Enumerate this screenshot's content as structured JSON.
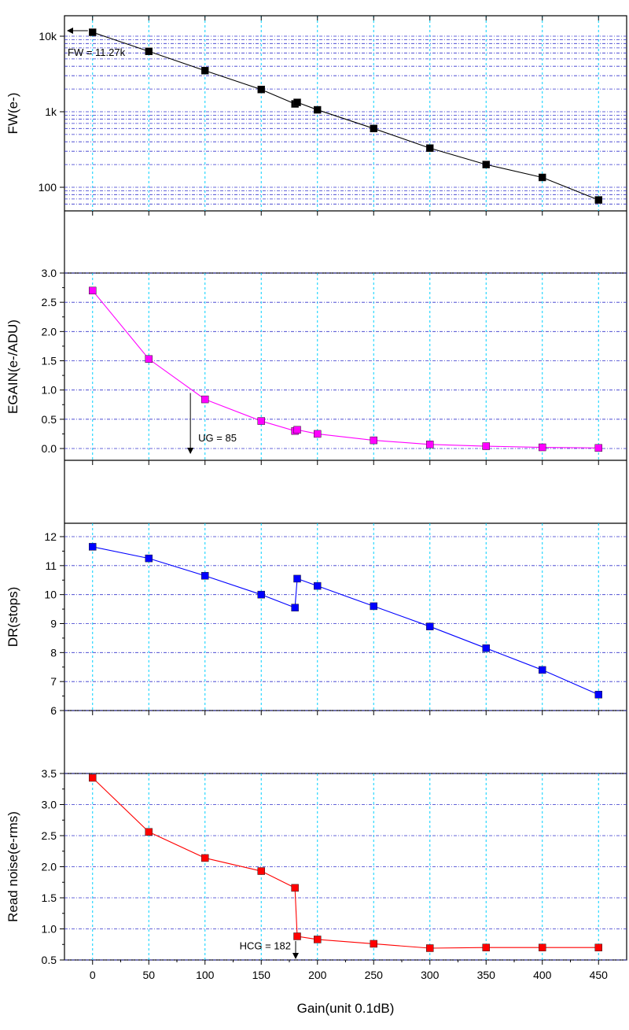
{
  "chart_data": {
    "type": "line",
    "xlabel": "Gain(unit 0.1dB)",
    "xlim": [
      -25,
      475
    ],
    "x_ticks": [
      0,
      50,
      100,
      150,
      200,
      250,
      300,
      350,
      400,
      450
    ],
    "x_tick_labels": [
      "0",
      "50",
      "100",
      "150",
      "200",
      "250",
      "300",
      "350",
      "400",
      "450"
    ],
    "grid": true,
    "panels": [
      {
        "id": "fw",
        "ylabel": "FW(e-)",
        "scale": "log",
        "ylim": [
          55,
          13500
        ],
        "y_ticks": [
          100,
          1000,
          10000
        ],
        "y_tick_labels": [
          "100",
          "1k",
          "10k"
        ],
        "color": "#000000",
        "x": [
          0,
          50,
          100,
          150,
          180,
          182,
          200,
          250,
          300,
          350,
          400,
          450
        ],
        "y": [
          11270,
          6300,
          3500,
          1970,
          1270,
          1330,
          1060,
          600,
          330,
          200,
          135,
          68
        ],
        "annotation": {
          "text": "FW = 11.27k",
          "x": 0,
          "y": 11270
        }
      },
      {
        "id": "egain",
        "ylabel": "EGAIN(e-/ADU)",
        "scale": "linear",
        "ylim": [
          -0.1,
          3.0
        ],
        "y_ticks": [
          0.0,
          0.5,
          1.0,
          1.5,
          2.0,
          2.5,
          3.0
        ],
        "y_tick_labels": [
          "0.0",
          "0.5",
          "1.0",
          "1.5",
          "2.0",
          "2.5",
          "3.0"
        ],
        "color": "#ff00ff",
        "x": [
          0,
          50,
          100,
          150,
          180,
          182,
          200,
          250,
          300,
          350,
          400,
          450
        ],
        "y": [
          2.7,
          1.53,
          0.84,
          0.47,
          0.3,
          0.32,
          0.25,
          0.14,
          0.07,
          0.04,
          0.02,
          0.01
        ],
        "annotation": {
          "text": "UG = 85",
          "x": 87,
          "y": 0
        }
      },
      {
        "id": "dr",
        "ylabel": "DR(stops)",
        "scale": "linear",
        "ylim": [
          6,
          12.4
        ],
        "y_ticks": [
          6,
          7,
          8,
          9,
          10,
          11,
          12
        ],
        "y_tick_labels": [
          "6",
          "7",
          "8",
          "9",
          "10",
          "11",
          "12"
        ],
        "color": "#0000ff",
        "x": [
          0,
          50,
          100,
          150,
          180,
          182,
          200,
          250,
          300,
          350,
          400,
          450
        ],
        "y": [
          11.65,
          11.25,
          10.65,
          10.0,
          9.55,
          10.55,
          10.3,
          9.6,
          8.9,
          8.15,
          7.4,
          6.55
        ]
      },
      {
        "id": "rn",
        "ylabel": "Read noise(e-rms)",
        "scale": "linear",
        "ylim": [
          0.5,
          3.5
        ],
        "y_ticks": [
          0.5,
          1.0,
          1.5,
          2.0,
          2.5,
          3.0,
          3.5
        ],
        "y_tick_labels": [
          "0.5",
          "1.0",
          "1.5",
          "2.0",
          "2.5",
          "3.0",
          "3.5"
        ],
        "color": "#ff0000",
        "x": [
          0,
          50,
          100,
          150,
          180,
          182,
          200,
          250,
          300,
          350,
          400,
          450
        ],
        "y": [
          3.43,
          2.56,
          2.14,
          1.93,
          1.66,
          0.88,
          0.83,
          0.76,
          0.69,
          0.7,
          0.7,
          0.7
        ],
        "annotation": {
          "text": "HCG = 182",
          "x": 182,
          "y": 0.5
        }
      }
    ]
  }
}
